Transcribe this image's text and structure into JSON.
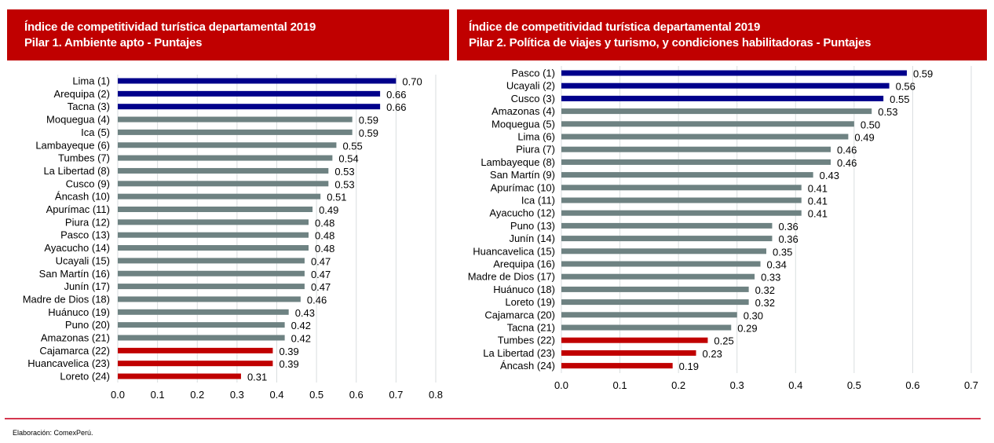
{
  "charts": [
    {
      "title_line1": "Índice de competitividad turística departamental 2019",
      "title_line2": "Pilar 1. Ambiente apto - Puntajes"
    },
    {
      "title_line1": "Índice de competitividad turística departamental 2019",
      "title_line2": "Pilar 2. Política de viajes y turismo, y condiciones habilitadoras - Puntajes"
    }
  ],
  "colors": {
    "top": "#00008b",
    "middle": "#6e8282",
    "bottom": "#c00000",
    "header": "#c00000",
    "grid": "#d9dedf"
  },
  "footer": {
    "source": "Elaboración: ComexPerú."
  },
  "chart_data": [
    {
      "type": "bar",
      "orientation": "horizontal",
      "title": "Índice de competitividad turística departamental 2019 — Pilar 1. Ambiente apto - Puntajes",
      "xlabel": "",
      "ylabel": "",
      "xlim": [
        0,
        0.8
      ],
      "xticks": [
        "0.0",
        "0.1",
        "0.2",
        "0.3",
        "0.4",
        "0.5",
        "0.6",
        "0.7",
        "0.8"
      ],
      "grid": true,
      "categories": [
        "Lima (1)",
        "Arequipa (2)",
        "Tacna (3)",
        "Moquegua (4)",
        "Ica (5)",
        "Lambayeque (6)",
        "Tumbes (7)",
        "La Libertad (8)",
        "Cusco (9)",
        "Áncash (10)",
        "Apurímac (11)",
        "Piura (12)",
        "Pasco (13)",
        "Ayacucho (14)",
        "Ucayali (15)",
        "San Martín (16)",
        "Junín (17)",
        "Madre de Dios (18)",
        "Huánuco (19)",
        "Puno (20)",
        "Amazonas (21)",
        "Cajamarca (22)",
        "Huancavelica (23)",
        "Loreto (24)"
      ],
      "values": [
        0.7,
        0.66,
        0.66,
        0.59,
        0.59,
        0.55,
        0.54,
        0.53,
        0.53,
        0.51,
        0.49,
        0.48,
        0.48,
        0.48,
        0.47,
        0.47,
        0.47,
        0.46,
        0.43,
        0.42,
        0.42,
        0.39,
        0.39,
        0.31
      ],
      "labels": [
        "0.70",
        "0.66",
        "0.66",
        "0.59",
        "0.59",
        "0.55",
        "0.54",
        "0.53",
        "0.53",
        "0.51",
        "0.49",
        "0.48",
        "0.48",
        "0.48",
        "0.47",
        "0.47",
        "0.47",
        "0.46",
        "0.43",
        "0.42",
        "0.42",
        "0.39",
        "0.39",
        "0.31"
      ],
      "groups": [
        "top",
        "top",
        "top",
        "middle",
        "middle",
        "middle",
        "middle",
        "middle",
        "middle",
        "middle",
        "middle",
        "middle",
        "middle",
        "middle",
        "middle",
        "middle",
        "middle",
        "middle",
        "middle",
        "middle",
        "middle",
        "bottom",
        "bottom",
        "bottom"
      ]
    },
    {
      "type": "bar",
      "orientation": "horizontal",
      "title": "Índice de competitividad turística departamental 2019 — Pilar 2. Política de viajes y turismo, y condiciones habilitadoras - Puntajes",
      "xlabel": "",
      "ylabel": "",
      "xlim": [
        0,
        0.7
      ],
      "xticks": [
        "0.0",
        "0.1",
        "0.2",
        "0.3",
        "0.4",
        "0.5",
        "0.6",
        "0.7"
      ],
      "grid": true,
      "categories": [
        "Pasco (1)",
        "Ucayali (2)",
        "Cusco (3)",
        "Amazonas (4)",
        "Moquegua (5)",
        "Lima (6)",
        "Piura (7)",
        "Lambayeque (8)",
        "San Martín (9)",
        "Apurímac (10)",
        "Ica (11)",
        "Ayacucho (12)",
        "Puno (13)",
        "Junín (14)",
        "Huancavelica (15)",
        "Arequipa (16)",
        "Madre de Dios (17)",
        "Huánuco (18)",
        "Loreto (19)",
        "Cajamarca (20)",
        "Tacna (21)",
        "Tumbes (22)",
        "La Libertad (23)",
        "Áncash (24)"
      ],
      "values": [
        0.59,
        0.56,
        0.55,
        0.53,
        0.5,
        0.49,
        0.46,
        0.46,
        0.43,
        0.41,
        0.41,
        0.41,
        0.36,
        0.36,
        0.35,
        0.34,
        0.33,
        0.32,
        0.32,
        0.3,
        0.29,
        0.25,
        0.23,
        0.19
      ],
      "labels": [
        "0.59",
        "0.56",
        "0.55",
        "0.53",
        "0.50",
        "0.49",
        "0.46",
        "0.46",
        "0.43",
        "0.41",
        "0.41",
        "0.41",
        "0.36",
        "0.36",
        "0.35",
        "0.34",
        "0.33",
        "0.32",
        "0.32",
        "0.30",
        "0.29",
        "0.25",
        "0.23",
        "0.19"
      ],
      "groups": [
        "top",
        "top",
        "top",
        "middle",
        "middle",
        "middle",
        "middle",
        "middle",
        "middle",
        "middle",
        "middle",
        "middle",
        "middle",
        "middle",
        "middle",
        "middle",
        "middle",
        "middle",
        "middle",
        "middle",
        "middle",
        "bottom",
        "bottom",
        "bottom"
      ]
    }
  ]
}
